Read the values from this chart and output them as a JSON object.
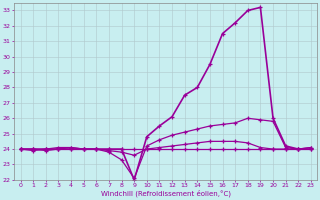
{
  "xlabel": "Windchill (Refroidissement éolien,°C)",
  "xlim": [
    -0.5,
    23.5
  ],
  "ylim": [
    22,
    33.5
  ],
  "yticks": [
    22,
    23,
    24,
    25,
    26,
    27,
    28,
    29,
    30,
    31,
    32,
    33
  ],
  "xticks": [
    0,
    1,
    2,
    3,
    4,
    5,
    6,
    7,
    8,
    9,
    10,
    11,
    12,
    13,
    14,
    15,
    16,
    17,
    18,
    19,
    20,
    21,
    22,
    23
  ],
  "bg_color": "#c8eef0",
  "line_color": "#990099",
  "grid_color": "#b0c8cc",
  "lines": [
    {
      "x": [
        0,
        1,
        2,
        3,
        4,
        5,
        6,
        7,
        8,
        9,
        10,
        11,
        12,
        13,
        14,
        15,
        16,
        17,
        18,
        19,
        20,
        21,
        22,
        23
      ],
      "y": [
        24.0,
        24.0,
        24.0,
        24.0,
        24.0,
        24.0,
        24.0,
        24.0,
        24.0,
        24.0,
        24.0,
        24.0,
        24.0,
        24.0,
        24.0,
        24.0,
        24.0,
        24.0,
        24.0,
        24.0,
        24.0,
        24.0,
        24.0,
        24.0
      ]
    },
    {
      "x": [
        0,
        1,
        2,
        3,
        4,
        5,
        6,
        7,
        8,
        9,
        10,
        11,
        12,
        13,
        14,
        15,
        16,
        17,
        18,
        19,
        20,
        21,
        22,
        23
      ],
      "y": [
        24.0,
        23.9,
        24.0,
        24.1,
        24.1,
        24.0,
        24.0,
        23.9,
        23.8,
        23.6,
        24.0,
        24.1,
        24.2,
        24.3,
        24.4,
        24.5,
        24.5,
        24.5,
        24.4,
        24.1,
        24.0,
        24.0,
        24.0,
        24.1
      ]
    },
    {
      "x": [
        0,
        1,
        2,
        3,
        4,
        5,
        6,
        7,
        8,
        9,
        10,
        11,
        12,
        13,
        14,
        15,
        16,
        17,
        18,
        19,
        20,
        21,
        22,
        23
      ],
      "y": [
        24.0,
        24.0,
        23.9,
        24.0,
        24.1,
        24.0,
        24.0,
        23.8,
        23.3,
        22.1,
        24.2,
        24.6,
        24.9,
        25.1,
        25.3,
        25.5,
        25.6,
        25.7,
        26.0,
        25.9,
        25.8,
        24.1,
        24.0,
        24.1
      ]
    },
    {
      "x": [
        0,
        1,
        2,
        3,
        4,
        5,
        6,
        7,
        8,
        9,
        10,
        11,
        12,
        13,
        14,
        15,
        16,
        17,
        18,
        19,
        20,
        21,
        22,
        23
      ],
      "y": [
        24.0,
        24.0,
        24.0,
        24.0,
        24.0,
        24.0,
        24.0,
        24.0,
        24.0,
        22.0,
        24.8,
        25.5,
        26.1,
        27.5,
        28.0,
        29.5,
        31.5,
        32.2,
        33.0,
        33.2,
        26.0,
        24.2,
        24.0,
        24.0
      ]
    }
  ]
}
